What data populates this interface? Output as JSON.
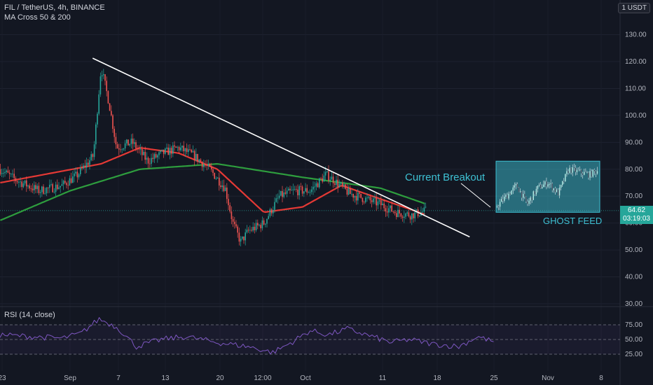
{
  "header": {
    "symbol_line": "FIL / TetherUS, 4h, BINANCE",
    "indicator_line": "MA Cross 50 & 200",
    "unit_button": "1 USDT"
  },
  "rsi": {
    "label": "RSI (14, close)",
    "levels": [
      75,
      50,
      25
    ],
    "level_labels": [
      "75.00",
      "50.00",
      "25.00"
    ]
  },
  "price_tag": {
    "price": "64.62",
    "countdown": "03:19:03"
  },
  "annotations": {
    "breakout": "Current Breakout",
    "ghost": "GHOST FEED"
  },
  "colors": {
    "background": "#131722",
    "candle_up": "#26a69a",
    "candle_down": "#ef5350",
    "ma50": "#e53935",
    "ma200": "#2e9e3e",
    "trendline": "#ffffff",
    "ghost_box": "#3ec1d3",
    "rsi_line": "#7e57c2"
  },
  "chart_data": {
    "type": "candlestick",
    "title": "FIL / TetherUS, 4h, BINANCE",
    "y_axis": {
      "ticks": [
        130,
        120,
        110,
        100,
        90,
        80,
        70,
        60,
        50,
        40,
        30
      ],
      "tick_labels": [
        "130.00",
        "120.00",
        "110.00",
        "100.00",
        "90.00",
        "80.00",
        "70.00",
        "60.00",
        "50.00",
        "40.00",
        "30.00"
      ],
      "range": [
        30,
        135
      ]
    },
    "x_axis": {
      "tick_labels": [
        "23",
        "Sep",
        "7",
        "13",
        "20",
        "12:00",
        "Oct",
        "11",
        "18",
        "25",
        "Nov",
        "8"
      ]
    },
    "price_path": [
      [
        "Aug 23",
        80
      ],
      [
        "Aug 25",
        76
      ],
      [
        "Aug 28",
        72
      ],
      [
        "Aug 31",
        74
      ],
      [
        "Sep 2",
        78
      ],
      [
        "Sep 4",
        85
      ],
      [
        "Sep 5",
        118
      ],
      [
        "Sep 6",
        105
      ],
      [
        "Sep 7",
        88
      ],
      [
        "Sep 9",
        90
      ],
      [
        "Sep 11",
        83
      ],
      [
        "Sep 13",
        86
      ],
      [
        "Sep 15",
        88
      ],
      [
        "Sep 17",
        85
      ],
      [
        "Sep 19",
        80
      ],
      [
        "Sep 21",
        73
      ],
      [
        "Sep 22",
        60
      ],
      [
        "Sep 23",
        53
      ],
      [
        "Sep 24",
        57
      ],
      [
        "Sep 26",
        60
      ],
      [
        "Sep 28",
        70
      ],
      [
        "Sep 30",
        72
      ],
      [
        "Oct 2",
        72
      ],
      [
        "Oct 4",
        78
      ],
      [
        "Oct 5",
        76
      ],
      [
        "Oct 7",
        71
      ],
      [
        "Oct 9",
        69
      ],
      [
        "Oct 11",
        67
      ],
      [
        "Oct 13",
        64
      ],
      [
        "Oct 15",
        63
      ],
      [
        "Oct 17",
        64.6
      ]
    ],
    "ma50": [
      [
        "Aug 23",
        75
      ],
      [
        "Sep 5",
        82
      ],
      [
        "Sep 10",
        88
      ],
      [
        "Sep 15",
        86
      ],
      [
        "Sep 20",
        80
      ],
      [
        "Sep 26",
        64
      ],
      [
        "Oct 1",
        66
      ],
      [
        "Oct 6",
        74
      ],
      [
        "Oct 11",
        69
      ],
      [
        "Oct 17",
        63
      ]
    ],
    "ma200": [
      [
        "Aug 23",
        61
      ],
      [
        "Sep 1",
        72
      ],
      [
        "Sep 10",
        80
      ],
      [
        "Sep 20",
        82
      ],
      [
        "Oct 1",
        77
      ],
      [
        "Oct 11",
        73
      ],
      [
        "Oct 17",
        67
      ]
    ],
    "trendline": [
      [
        "Sep 5",
        121
      ],
      [
        "Oct 20",
        58
      ]
    ],
    "ghost_feed": {
      "y_range": [
        64,
        83
      ],
      "path": [
        [
          0,
          66
        ],
        [
          0.1,
          70
        ],
        [
          0.2,
          74
        ],
        [
          0.3,
          67
        ],
        [
          0.4,
          73
        ],
        [
          0.5,
          75
        ],
        [
          0.6,
          71
        ],
        [
          0.7,
          80
        ],
        [
          0.8,
          79
        ],
        [
          0.9,
          78
        ],
        [
          1,
          80
        ]
      ]
    },
    "rsi_path": [
      [
        0,
        58
      ],
      [
        0.05,
        55
      ],
      [
        0.1,
        52
      ],
      [
        0.13,
        60
      ],
      [
        0.16,
        85
      ],
      [
        0.19,
        70
      ],
      [
        0.22,
        38
      ],
      [
        0.26,
        50
      ],
      [
        0.3,
        55
      ],
      [
        0.35,
        45
      ],
      [
        0.4,
        38
      ],
      [
        0.44,
        28
      ],
      [
        0.47,
        45
      ],
      [
        0.5,
        65
      ],
      [
        0.53,
        58
      ],
      [
        0.56,
        68
      ],
      [
        0.6,
        55
      ],
      [
        0.63,
        45
      ],
      [
        0.66,
        50
      ],
      [
        0.7,
        42
      ],
      [
        0.74,
        38
      ],
      [
        0.77,
        55
      ],
      [
        0.8,
        45
      ]
    ],
    "grid": true
  }
}
